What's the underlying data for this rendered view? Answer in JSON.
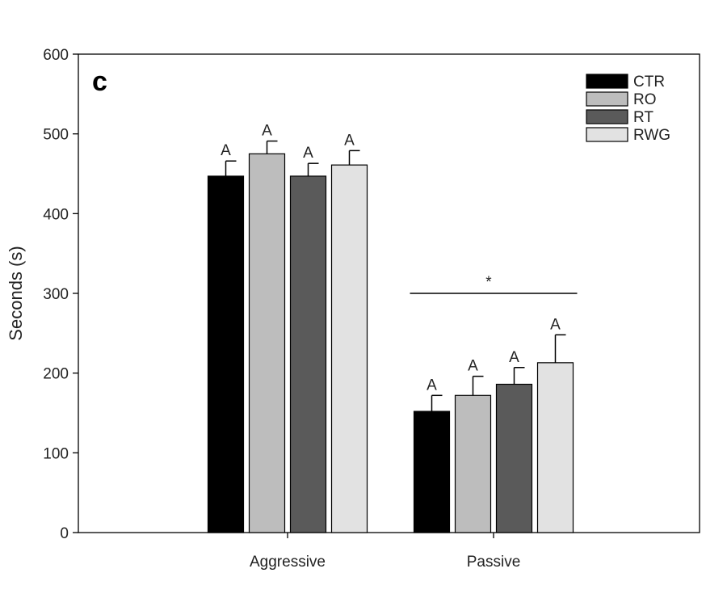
{
  "panel_label": "c",
  "chart_data": {
    "type": "bar",
    "categories": [
      "Aggressive",
      "Passive"
    ],
    "series": [
      {
        "name": "CTR",
        "color": "#000000",
        "values": [
          447,
          152
        ],
        "errors": [
          19,
          20
        ],
        "labels": [
          "A",
          "A"
        ]
      },
      {
        "name": "RO",
        "color": "#bdbdbd",
        "values": [
          475,
          172
        ],
        "errors": [
          16,
          24
        ],
        "labels": [
          "A",
          "A"
        ]
      },
      {
        "name": "RT",
        "color": "#5a5a5a",
        "values": [
          447,
          186
        ],
        "errors": [
          16,
          21
        ],
        "labels": [
          "A",
          "A"
        ]
      },
      {
        "name": "RWG",
        "color": "#e2e2e2",
        "values": [
          461,
          213
        ],
        "errors": [
          18,
          35
        ],
        "labels": [
          "A",
          "A"
        ]
      }
    ],
    "ylabel": "Seconds (s)",
    "xlabel": "",
    "ylim": [
      0,
      600
    ],
    "yticks": [
      0,
      100,
      200,
      300,
      400,
      500,
      600
    ],
    "grid": false,
    "legend_position": "top-right",
    "annotations": [
      {
        "text": "*",
        "category": "Passive",
        "y": 300
      }
    ]
  }
}
